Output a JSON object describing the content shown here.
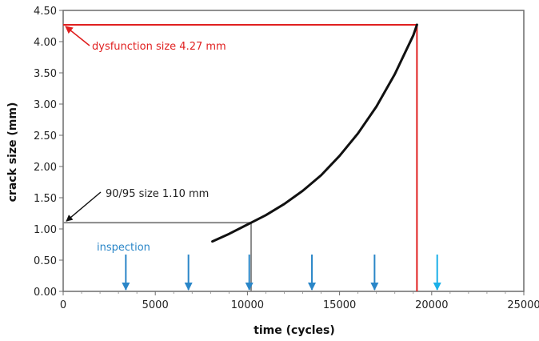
{
  "chart_data": {
    "type": "line",
    "xlabel": "time (cycles)",
    "ylabel": "crack size (mm)",
    "xlim": [
      0,
      25000
    ],
    "ylim": [
      0,
      4.5
    ],
    "x_ticks": [
      0,
      5000,
      10000,
      15000,
      20000,
      25000
    ],
    "x_tick_labels": [
      "0",
      "5000",
      "10000",
      "15000",
      "20000",
      "25000"
    ],
    "y_ticks": [
      0,
      0.5,
      1.0,
      1.5,
      2.0,
      2.5,
      3.0,
      3.5,
      4.0,
      4.5
    ],
    "y_tick_labels": [
      "0.00",
      "0.50",
      "1.00",
      "1.50",
      "2.00",
      "2.50",
      "3.00",
      "3.50",
      "4.00",
      "4.50"
    ],
    "grid": false,
    "series": [
      {
        "color": "#111111",
        "x": [
          8100,
          9000,
          10000,
          10200,
          11000,
          12000,
          13000,
          14000,
          15000,
          16000,
          17000,
          18000,
          19000,
          19200
        ],
        "y": [
          0.8,
          0.92,
          1.07,
          1.1,
          1.22,
          1.4,
          1.61,
          1.86,
          2.17,
          2.53,
          2.96,
          3.48,
          4.1,
          4.27
        ]
      }
    ],
    "annotations": {
      "dysfunction": {
        "text": "dysfunction size 4.27 mm",
        "value": 4.27,
        "x_cycles": 19200,
        "color": "#e02020"
      },
      "detectable": {
        "text": "90/95 size 1.10 mm",
        "value": 1.1,
        "x_cycles": 10200,
        "color": "#808080"
      },
      "inspection": {
        "text": "inspection",
        "color": "#2a86c8",
        "highlight_color": "#1ab0e8",
        "cycles": [
          3400,
          6800,
          10100,
          13500,
          16900,
          20300
        ]
      }
    }
  }
}
